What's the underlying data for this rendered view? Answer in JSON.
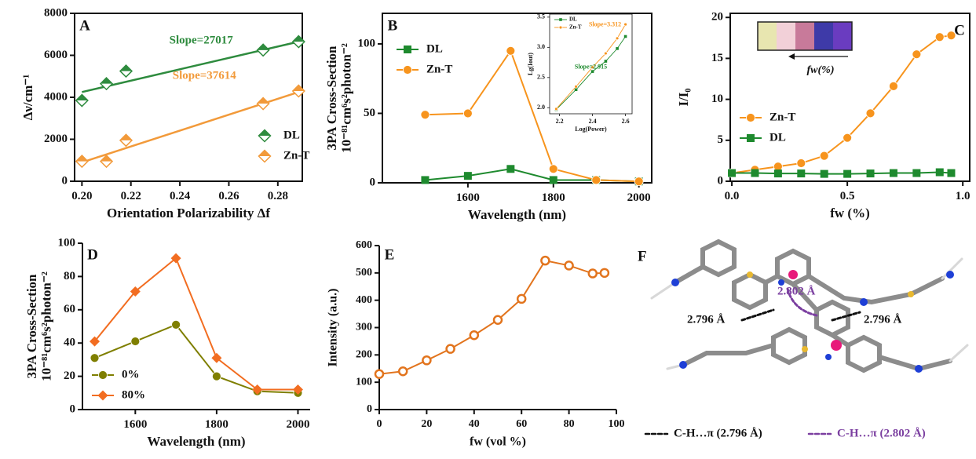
{
  "chart_data": [
    {
      "type": "scatter",
      "label": "A",
      "x_label": "Orientation Polarizability Δf",
      "y_label": "Δν/cm⁻¹",
      "x": [
        0.2,
        0.21,
        0.218,
        0.274,
        0.2885
      ],
      "xlim": [
        0.197,
        0.29
      ],
      "ylim": [
        0,
        8000
      ],
      "xticks": [
        {
          "value": 0.2,
          "label": "0.20"
        },
        {
          "value": 0.22,
          "label": "0.22"
        },
        {
          "value": 0.24,
          "label": "0.24"
        },
        {
          "value": 0.26,
          "label": "0.26"
        },
        {
          "value": 0.28,
          "label": "0.28"
        }
      ],
      "yticks": [
        0,
        2000,
        4000,
        6000,
        8000
      ],
      "frame": true,
      "legend": "lower right",
      "fit_x": [
        0.2,
        0.2885
      ],
      "series": [
        {
          "name": "DL",
          "color": "#2e8b3e",
          "marker": "half-diamond",
          "values": [
            3850,
            4650,
            5250,
            6250,
            6650
          ],
          "fit": [
            4250,
            6650
          ]
        },
        {
          "name": "Zn-T",
          "color": "#f29a3a",
          "marker": "half-diamond",
          "values": [
            950,
            950,
            1950,
            3700,
            4300
          ],
          "fit": [
            900,
            4250
          ]
        }
      ],
      "annotations": [
        {
          "text": "Slope=27017",
          "x": 0.2487,
          "y": 6690,
          "color": "#2e8b3e"
        },
        {
          "text": "Slope=37614",
          "x": 0.25,
          "y": 5010,
          "color": "#f29a3a"
        }
      ]
    },
    {
      "type": "line",
      "label": "B",
      "x_label": "Wavelength (nm)",
      "y_label": [
        "3PA Cross-Section",
        "10⁻⁸¹cm⁶s²photon⁻²"
      ],
      "x": [
        1500,
        1600,
        1700,
        1800,
        1900,
        2000
      ],
      "xlim": [
        1400,
        2030
      ],
      "ylim": [
        0,
        122
      ],
      "xticks": [
        1600,
        1800,
        2000
      ],
      "yticks": [
        0,
        50,
        100
      ],
      "frame": true,
      "legend": "upper left",
      "series": [
        {
          "name": "DL",
          "color": "#1e8a2e",
          "marker": "square",
          "values": [
            2,
            5,
            10,
            2,
            2,
            1
          ]
        },
        {
          "name": "Zn-T",
          "color": "#f7941d",
          "marker": "circle",
          "values": [
            49,
            50,
            95,
            10,
            2,
            1
          ]
        }
      ]
    },
    {
      "type": "line",
      "x_label": "Log(Power)",
      "y_label": "Lg(Iout)",
      "x": [
        2.18,
        2.3,
        2.4,
        2.48,
        2.55,
        2.6
      ],
      "xlim": [
        2.14,
        2.64
      ],
      "ylim": [
        1.9,
        3.55
      ],
      "xticks": [
        2.2,
        2.4,
        2.6
      ],
      "yticks": [
        {
          "value": 2,
          "label": "2.0"
        },
        2.5,
        {
          "value": 3,
          "label": "3.0"
        },
        3.5
      ],
      "frame": true,
      "legend": "upper left",
      "series": [
        {
          "name": "DL",
          "color": "#1e8a2e",
          "marker": "square",
          "values": [
            1.97,
            2.3,
            2.6,
            2.77,
            2.98,
            3.18
          ]
        },
        {
          "name": "Zn-T",
          "color": "#f7941d",
          "marker": "circle",
          "values": [
            1.98,
            2.35,
            2.67,
            2.9,
            3.15,
            3.38
          ]
        }
      ],
      "annotations": [
        {
          "text": "Slope=3.312",
          "x": 2.476,
          "y": 3.37,
          "color": "#f7941d"
        },
        {
          "text": "Slope=2.915",
          "x": 2.39,
          "y": 2.67,
          "color": "#1e8a2e"
        }
      ]
    },
    {
      "type": "line",
      "label": "C",
      "x_label": "fw (%)",
      "y_label": "I/I₀",
      "photo_caption": "fw(%)",
      "x": [
        0,
        0.1,
        0.2,
        0.3,
        0.4,
        0.5,
        0.6,
        0.7,
        0.8,
        0.9,
        0.95
      ],
      "xlim": [
        -0.007,
        1.03
      ],
      "ylim": [
        0,
        20.5
      ],
      "xticks": [
        {
          "value": 0,
          "label": "0.0"
        },
        0.5,
        {
          "value": 1,
          "label": "1.0"
        }
      ],
      "yticks": [
        0,
        5,
        10,
        15,
        20
      ],
      "frame": true,
      "legend": "center left",
      "series": [
        {
          "name": "Zn-T",
          "color": "#f7941d",
          "marker": "circle",
          "values": [
            1,
            1.4,
            1.8,
            2.2,
            3.1,
            5.3,
            8.3,
            11.6,
            15.5,
            17.6,
            17.8
          ]
        },
        {
          "name": "DL",
          "color": "#1e8a2e",
          "marker": "square",
          "values": [
            1,
            1,
            0.95,
            0.95,
            0.9,
            0.9,
            0.95,
            1,
            1,
            1.1,
            1
          ]
        }
      ]
    },
    {
      "type": "line",
      "label": "D",
      "x_label": "Wavelength (nm)",
      "y_label": [
        "3PA Cross-Section",
        "10⁻⁸¹cm⁶s²photon⁻²"
      ],
      "x": [
        1500,
        1600,
        1700,
        1800,
        1900,
        2000
      ],
      "xlim": [
        1470,
        2030
      ],
      "ylim": [
        0,
        100
      ],
      "xticks": [
        1600,
        1800,
        2000
      ],
      "yticks": [
        0,
        20,
        40,
        60,
        80,
        100
      ],
      "frame": false,
      "legend": "lower left",
      "series": [
        {
          "name": "0%",
          "color": "#7f7f00",
          "marker": "circle",
          "values": [
            31,
            41,
            51,
            20,
            11,
            10
          ]
        },
        {
          "name": "80%",
          "color": "#f26d21",
          "marker": "diamond",
          "values": [
            41,
            71,
            91,
            31,
            12,
            12
          ]
        }
      ]
    },
    {
      "type": "line",
      "label": "E",
      "x_label": "fw (vol %)",
      "y_label": "Intensity (a.u.)",
      "x": [
        0,
        10,
        20,
        30,
        40,
        50,
        60,
        70,
        80,
        90,
        95
      ],
      "xlim": [
        0,
        100
      ],
      "ylim": [
        0,
        600
      ],
      "xticks": [
        0,
        20,
        40,
        60,
        80,
        100
      ],
      "yticks": [
        0,
        100,
        200,
        300,
        400,
        500,
        600
      ],
      "frame": false,
      "series": [
        {
          "color": "#e2741d",
          "marker": "open-circle",
          "values": [
            130,
            140,
            180,
            222,
            272,
            328,
            405,
            545,
            527,
            498,
            500
          ]
        }
      ]
    }
  ],
  "panel_f": {
    "label": "F",
    "distance_purple": "2.802 Å",
    "distance_left": "2.796 Å",
    "distance_right": "2.796 Å",
    "legend_black": "C-H…π (2.796 Å)",
    "legend_purple": "C-H…π (2.802 Å)"
  }
}
